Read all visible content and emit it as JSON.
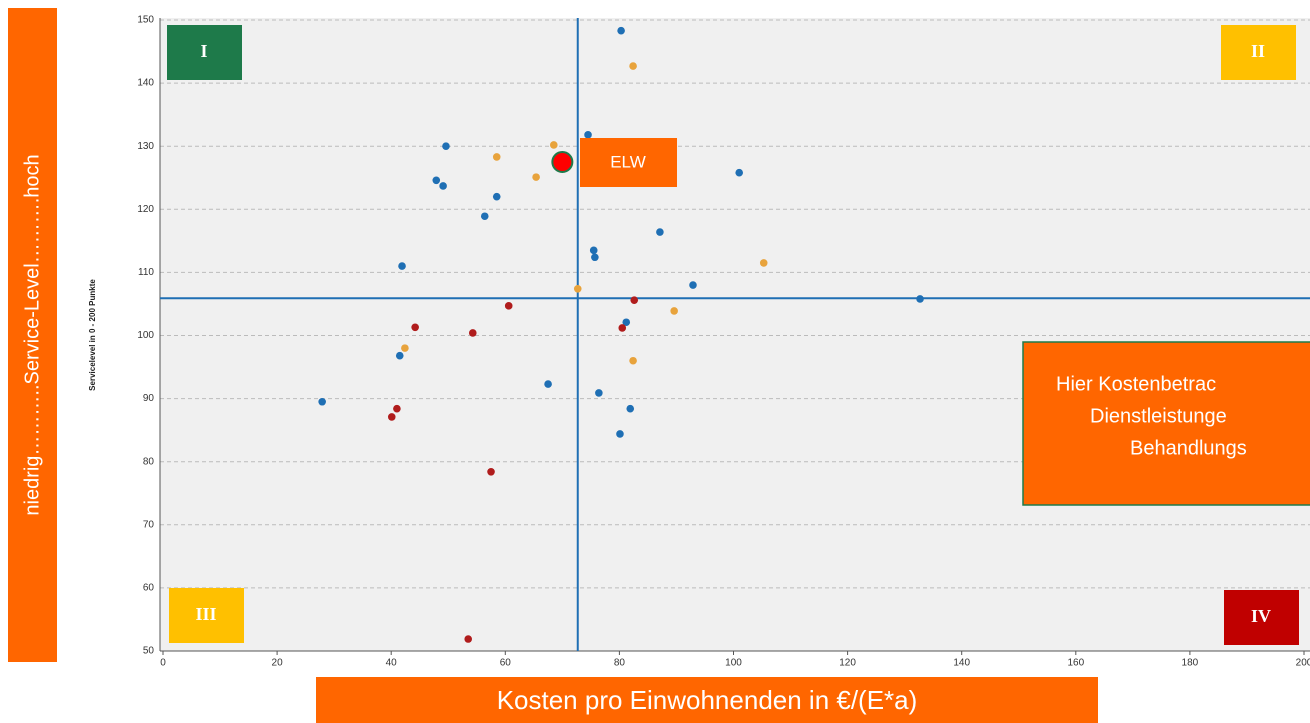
{
  "chart_data": {
    "type": "scatter",
    "y_axis_label": "Servicelevel in 0 - 200 Punkte",
    "side_label": "niedrig………..Service-Level……….hoch",
    "x_axis_label": "Kosten pro Einwohnenden in €/(E*a)",
    "xlim": [
      0,
      200
    ],
    "ylim": [
      50,
      150
    ],
    "xticks": [
      0,
      20,
      40,
      60,
      80,
      100,
      120,
      140,
      160,
      180,
      200
    ],
    "yticks": [
      50,
      60,
      70,
      80,
      90,
      100,
      110,
      120,
      130,
      140,
      150
    ],
    "grid": true,
    "reference_x": 72.7,
    "reference_y": 105.9,
    "quadrants": [
      "I",
      "II",
      "III",
      "IV"
    ],
    "series": [
      {
        "color": "#1f6fb4",
        "x": [
          80.3,
          74.5,
          49.6,
          101.0,
          47.9,
          49.1,
          58.5,
          56.4,
          87.1,
          75.5,
          75.7,
          41.9,
          92.9,
          132.7,
          81.2,
          41.5,
          67.5,
          76.4,
          27.9,
          81.9,
          80.1
        ],
        "values": [
          148.3,
          131.8,
          130.0,
          125.8,
          124.6,
          123.7,
          122.0,
          118.9,
          116.4,
          113.5,
          112.4,
          111.0,
          108.0,
          105.8,
          102.1,
          96.8,
          92.3,
          90.9,
          89.5,
          88.4,
          84.4
        ]
      },
      {
        "color": "#e8a33c",
        "x": [
          82.4,
          68.5,
          58.5,
          65.4,
          105.3,
          72.7,
          89.6,
          42.4,
          82.4
        ],
        "values": [
          142.7,
          130.2,
          128.3,
          125.1,
          111.5,
          107.4,
          103.9,
          98.0,
          96.0
        ]
      },
      {
        "color": "#b01c1c",
        "x": [
          82.6,
          60.6,
          44.2,
          80.5,
          54.3,
          41.0,
          40.1,
          57.5,
          53.5
        ],
        "values": [
          105.6,
          104.7,
          101.3,
          101.2,
          100.4,
          88.4,
          87.1,
          78.4,
          51.9
        ]
      }
    ],
    "highlight": {
      "label": "ELW",
      "x": 70.0,
      "y": 127.5
    },
    "note": [
      "Hier Kostenbetrac",
      "Dienstleistunge",
      "Behandlungs"
    ]
  }
}
